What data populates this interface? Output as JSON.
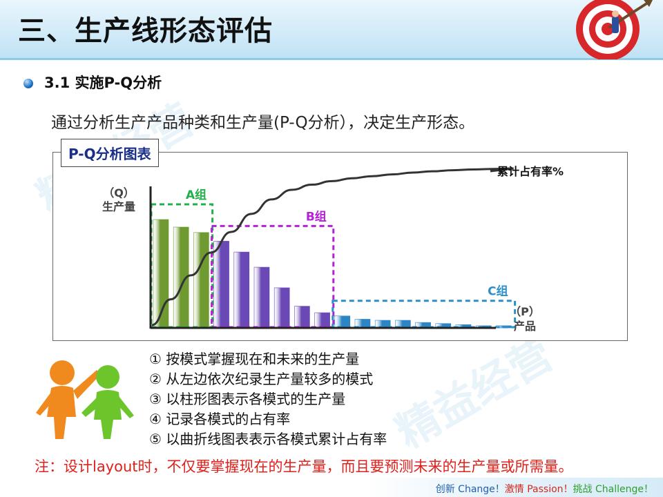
{
  "page_title": "三、生产线形态评估",
  "section": {
    "number": "3.1",
    "title": "实施P-Q分析"
  },
  "intro": "通过分析生产产品种类和生产量(P-Q分析），决定生产形态。",
  "chart_box_title": "P-Q分析图表",
  "chart_data": {
    "type": "bar",
    "title": "P-Q分析图表",
    "y_label_top": "（Q）",
    "y_label_bottom": "生产量",
    "x_label_top": "（P）",
    "x_label_bottom": "产品",
    "values": [
      100,
      93,
      88,
      80,
      70,
      56,
      37,
      20,
      14,
      11,
      8,
      7,
      7,
      5,
      4,
      3,
      2,
      2
    ],
    "ylim": [
      0,
      100
    ],
    "groups": [
      {
        "name": "A组",
        "start": 0,
        "end": 2,
        "color": "#22b04c",
        "bar_color": "#6f9a32"
      },
      {
        "name": "B组",
        "start": 3,
        "end": 8,
        "color": "#b51fd6",
        "bar_color": "#6a48b5"
      },
      {
        "name": "C组",
        "start": 9,
        "end": 17,
        "color": "#2c8fc8",
        "bar_color": "#2c86c6"
      }
    ],
    "cumulative_label": "累计占有率%",
    "show_cumulative_curve": true,
    "grid": false
  },
  "steps": [
    "① 按模式掌握现在和未来的生产量",
    "② 从左边依次纪录生产量较多的模式",
    "③ 以柱形图表示各模式的生产量",
    "④ 记录各模式的占有率",
    "⑤ 以曲折线图表表示各模式累计占有率"
  ],
  "note": "注：设计layout时，不仅要掌握现在的生产量，而且要预测未来的生产量或所需量。",
  "slogan": {
    "part1": "创新 Change！",
    "part2": "激情 Passion！",
    "part3": "挑战 Challenge！"
  },
  "watermark_text": "精益经营",
  "colors": {
    "title_band": "#bfe2f5",
    "note_red": "#e0201b",
    "slogan_blue": "#1f5fb0",
    "slogan_red": "#d9261c",
    "slogan_green": "#2e9e2e",
    "figure_orange": "#f08a1e",
    "figure_green": "#6cc52a"
  }
}
